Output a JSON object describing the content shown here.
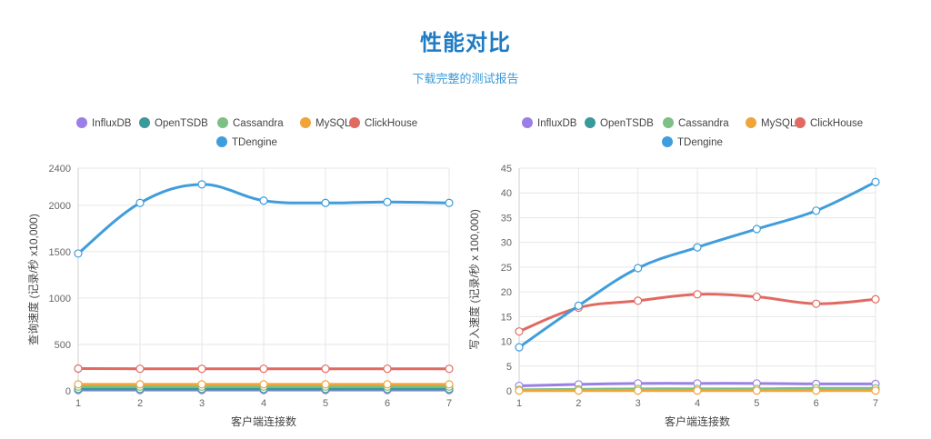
{
  "header": {
    "title": "性能对比",
    "subtitle": "下载完整的测试报告"
  },
  "chart_data": [
    {
      "type": "line",
      "title": "",
      "xlabel": "客户端连接数",
      "ylabel": "查询速度 (记录/秒 x10,000)",
      "categories": [
        "1",
        "2",
        "3",
        "4",
        "5",
        "6",
        "7"
      ],
      "ylim": [
        0,
        2400
      ],
      "yticks": [
        0,
        500,
        1000,
        1500,
        2000,
        2400
      ],
      "grid": true,
      "legend_position": "top",
      "series": [
        {
          "name": "InfluxDB",
          "color": "#9b7fe6",
          "values": [
            8,
            8,
            8,
            8,
            8,
            8,
            8
          ]
        },
        {
          "name": "OpenTSDB",
          "color": "#3a9a9a",
          "values": [
            20,
            20,
            20,
            20,
            20,
            20,
            20
          ]
        },
        {
          "name": "Cassandra",
          "color": "#7dbf85",
          "values": [
            45,
            45,
            45,
            45,
            45,
            45,
            45
          ]
        },
        {
          "name": "MySQL",
          "color": "#f0a43c",
          "values": [
            70,
            70,
            70,
            70,
            70,
            70,
            70
          ]
        },
        {
          "name": "ClickHouse",
          "color": "#e06a62",
          "values": [
            240,
            238,
            237,
            238,
            238,
            238,
            237
          ]
        },
        {
          "name": "TDengine",
          "color": "#409ddb",
          "values": [
            1480,
            2025,
            2225,
            2050,
            2025,
            2035,
            2025
          ]
        }
      ]
    },
    {
      "type": "line",
      "title": "",
      "xlabel": "客户端连接数",
      "ylabel": "写入速度 (记录/秒 x 100,000)",
      "categories": [
        "1",
        "2",
        "3",
        "4",
        "5",
        "6",
        "7"
      ],
      "ylim": [
        0,
        45
      ],
      "yticks": [
        0,
        5,
        10,
        15,
        20,
        25,
        30,
        35,
        40,
        45
      ],
      "grid": true,
      "legend_position": "top",
      "series": [
        {
          "name": "InfluxDB",
          "color": "#9b7fe6",
          "values": [
            1.0,
            1.3,
            1.5,
            1.5,
            1.5,
            1.4,
            1.4
          ]
        },
        {
          "name": "OpenTSDB",
          "color": "#3a9a9a",
          "values": [
            0.1,
            0.2,
            0.3,
            0.3,
            0.3,
            0.3,
            0.3
          ]
        },
        {
          "name": "Cassandra",
          "color": "#7dbf85",
          "values": [
            0.2,
            0.3,
            0.4,
            0.4,
            0.4,
            0.5,
            0.5
          ]
        },
        {
          "name": "MySQL",
          "color": "#f0a43c",
          "values": [
            0.05,
            0.05,
            0.05,
            0.05,
            0.05,
            0.05,
            0.05
          ]
        },
        {
          "name": "ClickHouse",
          "color": "#e06a62",
          "values": [
            12,
            16.8,
            18.2,
            19.5,
            19,
            17.6,
            18.5
          ]
        },
        {
          "name": "TDengine",
          "color": "#409ddb",
          "values": [
            8.8,
            17.2,
            24.8,
            29,
            32.7,
            36.4,
            42.2
          ]
        }
      ]
    }
  ]
}
